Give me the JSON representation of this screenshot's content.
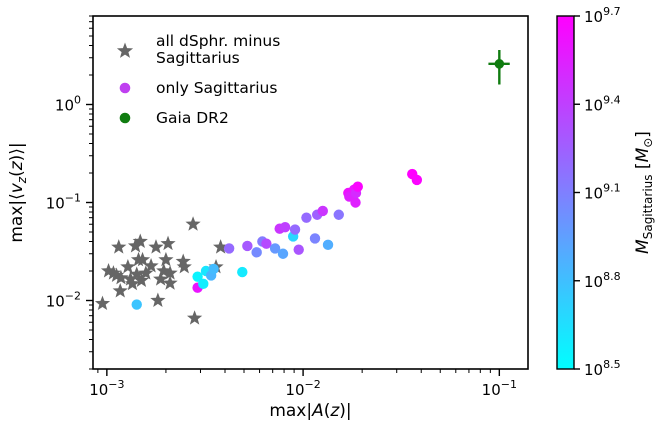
{
  "chart_data": {
    "type": "scatter",
    "xlabel": "max|A(z)|",
    "ylabel": "max|⟨v_z(z)⟩|",
    "x_scale": "log",
    "y_scale": "log",
    "xlim": [
      0.00085,
      0.14
    ],
    "ylim": [
      0.002,
      8
    ],
    "x_ticks": [
      {
        "value": 0.001,
        "base": "10",
        "exp": "−3"
      },
      {
        "value": 0.01,
        "base": "10",
        "exp": "−2"
      },
      {
        "value": 0.1,
        "base": "10",
        "exp": "−1"
      }
    ],
    "y_ticks": [
      {
        "value": 0.01,
        "base": "10",
        "exp": "−2"
      },
      {
        "value": 0.1,
        "base": "10",
        "exp": "−1"
      },
      {
        "value": 1,
        "base": "10",
        "exp": "0"
      }
    ],
    "legend": {
      "placement": "top-left",
      "entries": [
        {
          "line1": "all dSphr. minus",
          "line2": "Sagittarius",
          "marker": "star",
          "color": "#666666"
        },
        {
          "line1": "only Sagittarius",
          "line2": "",
          "marker": "circle",
          "color": "#bf40f0"
        },
        {
          "line1": "Gaia DR2",
          "line2": "",
          "marker": "circle",
          "color": "#107c10"
        }
      ]
    },
    "colorbar": {
      "label": "M_Sagittarius [M_⊙]",
      "label_main": "M",
      "label_sub": "Sagittarius",
      "label_unit_open": "[M",
      "label_unit_sub": "⊙",
      "label_unit_close": "]",
      "log_range": [
        8.5,
        9.7
      ],
      "color_low": "#00ffff",
      "color_high": "#ff00ff",
      "ticks": [
        {
          "value": 8.5,
          "base": "10",
          "exp": "8.5"
        },
        {
          "value": 8.8,
          "base": "10",
          "exp": "8.8"
        },
        {
          "value": 9.1,
          "base": "10",
          "exp": "9.1"
        },
        {
          "value": 9.4,
          "base": "10",
          "exp": "9.4"
        },
        {
          "value": 9.7,
          "base": "10",
          "exp": "9.7"
        }
      ]
    },
    "series": [
      {
        "name": "all dSphr. minus Sagittarius",
        "marker": "star",
        "color": "#666666",
        "points": [
          [
            0.00095,
            0.0093
          ],
          [
            0.00102,
            0.02
          ],
          [
            0.00108,
            0.019
          ],
          [
            0.00112,
            0.018
          ],
          [
            0.00115,
            0.035
          ],
          [
            0.00117,
            0.0125
          ],
          [
            0.00118,
            0.017
          ],
          [
            0.00128,
            0.022
          ],
          [
            0.00132,
            0.0165
          ],
          [
            0.00135,
            0.0148
          ],
          [
            0.0014,
            0.036
          ],
          [
            0.00142,
            0.0185
          ],
          [
            0.00145,
            0.026
          ],
          [
            0.00148,
            0.04
          ],
          [
            0.0015,
            0.016
          ],
          [
            0.00152,
            0.026
          ],
          [
            0.00158,
            0.019
          ],
          [
            0.00168,
            0.0225
          ],
          [
            0.00178,
            0.035
          ],
          [
            0.00182,
            0.01
          ],
          [
            0.00188,
            0.0165
          ],
          [
            0.00195,
            0.02
          ],
          [
            0.002,
            0.026
          ],
          [
            0.00205,
            0.038
          ],
          [
            0.0021,
            0.015
          ],
          [
            0.0021,
            0.019
          ],
          [
            0.00245,
            0.025
          ],
          [
            0.00248,
            0.022
          ],
          [
            0.00275,
            0.06
          ],
          [
            0.0028,
            0.0066
          ],
          [
            0.0036,
            0.022
          ],
          [
            0.0038,
            0.035
          ]
        ]
      },
      {
        "name": "only Sagittarius",
        "marker": "circle",
        "color": "#bf40f0",
        "points": [
          [
            0.00142,
            0.0091,
            8.78
          ],
          [
            0.0029,
            0.0175,
            8.55
          ],
          [
            0.0029,
            0.0135,
            9.6
          ],
          [
            0.0031,
            0.0148,
            8.58
          ],
          [
            0.0032,
            0.02,
            8.62
          ],
          [
            0.0034,
            0.018,
            8.85
          ],
          [
            0.0035,
            0.021,
            8.82
          ],
          [
            0.0042,
            0.034,
            9.2
          ],
          [
            0.0049,
            0.0195,
            8.6
          ],
          [
            0.0052,
            0.036,
            9.28
          ],
          [
            0.0058,
            0.031,
            9.05
          ],
          [
            0.0062,
            0.04,
            9.12
          ],
          [
            0.0065,
            0.038,
            9.35
          ],
          [
            0.0072,
            0.034,
            8.98
          ],
          [
            0.0076,
            0.054,
            9.45
          ],
          [
            0.0079,
            0.03,
            8.92
          ],
          [
            0.0081,
            0.056,
            9.4
          ],
          [
            0.0089,
            0.045,
            8.7
          ],
          [
            0.0091,
            0.053,
            9.2
          ],
          [
            0.0095,
            0.033,
            9.3
          ],
          [
            0.0104,
            0.07,
            9.2
          ],
          [
            0.0115,
            0.043,
            9.08
          ],
          [
            0.0118,
            0.075,
            9.25
          ],
          [
            0.0126,
            0.082,
            9.45
          ],
          [
            0.0134,
            0.037,
            8.88
          ],
          [
            0.0152,
            0.075,
            9.15
          ],
          [
            0.017,
            0.125,
            9.62
          ],
          [
            0.0172,
            0.115,
            9.55
          ],
          [
            0.0182,
            0.135,
            9.6
          ],
          [
            0.0185,
            0.1,
            9.55
          ],
          [
            0.0186,
            0.125,
            9.5
          ],
          [
            0.019,
            0.145,
            9.68
          ],
          [
            0.036,
            0.195,
            9.7
          ],
          [
            0.038,
            0.17,
            9.68
          ]
        ]
      },
      {
        "name": "Gaia DR2",
        "marker": "circle",
        "color": "#107c10",
        "points": [
          [
            0.1,
            2.6
          ]
        ],
        "x_err": [
          0.088,
          0.113
        ],
        "y_err": [
          1.6,
          3.6
        ]
      }
    ]
  }
}
